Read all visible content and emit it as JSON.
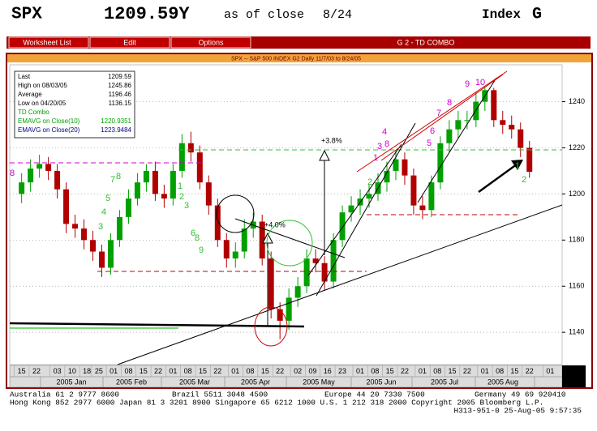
{
  "header": {
    "symbol": "SPX",
    "price": "1209.59Y",
    "as_of": "as of close",
    "date": "8/24",
    "market": "Index",
    "page": "G"
  },
  "menu": [
    "Worksheet List",
    "Edit",
    "Options"
  ],
  "menu_title": "G 2 - TD COMBO",
  "chart_data": {
    "type": "candlestick",
    "title": "SPX -- S&P 500 INDEX G2 Daily 11/7/03 to 8/24/05",
    "legend": [
      {
        "label": "Last",
        "value": 1209.59
      },
      {
        "label": "High on 08/03/05",
        "value": 1245.86
      },
      {
        "label": "Average",
        "value": 1196.46
      },
      {
        "label": "Low on 04/20/05",
        "value": 1136.15
      },
      {
        "label": "TD Combo"
      },
      {
        "label": "EMAVG on Close(10)",
        "value": 1220.9351
      },
      {
        "label": "EMAVG on Close(20)",
        "value": 1223.9484
      }
    ],
    "up_color": "#00a000",
    "down_color": "#b00000",
    "x": [
      2,
      5,
      8,
      11,
      14,
      17,
      20,
      23,
      26,
      29,
      32,
      35,
      38,
      41,
      44,
      47,
      50,
      53,
      56,
      59,
      62,
      65,
      68,
      71,
      74,
      77,
      80,
      83,
      86,
      89,
      92,
      95,
      98,
      101,
      104,
      107,
      110,
      113,
      116,
      119,
      122,
      125,
      128,
      131,
      134,
      137,
      140,
      143,
      146,
      149,
      152,
      155,
      158,
      161,
      164,
      167,
      170,
      173
    ],
    "open": [
      1200,
      1205,
      1211,
      1213,
      1210,
      1202,
      1187,
      1185,
      1180,
      1175,
      1168,
      1180,
      1190,
      1198,
      1205,
      1210,
      1200,
      1198,
      1210,
      1222,
      1218,
      1205,
      1195,
      1180,
      1172,
      1175,
      1185,
      1188,
      1172,
      1150,
      1145,
      1155,
      1160,
      1172,
      1170,
      1162,
      1180,
      1192,
      1195,
      1198,
      1200,
      1205,
      1210,
      1215,
      1208,
      1195,
      1193,
      1205,
      1222,
      1228,
      1232,
      1232,
      1240,
      1245,
      1232,
      1230,
      1228,
      1220
    ],
    "high": [
      1209,
      1215,
      1217,
      1216,
      1213,
      1205,
      1191,
      1189,
      1184,
      1178,
      1183,
      1193,
      1202,
      1209,
      1213,
      1214,
      1204,
      1213,
      1226,
      1227,
      1221,
      1208,
      1198,
      1183,
      1179,
      1189,
      1192,
      1191,
      1175,
      1153,
      1159,
      1164,
      1176,
      1176,
      1173,
      1183,
      1195,
      1199,
      1202,
      1204,
      1209,
      1214,
      1219,
      1218,
      1211,
      1199,
      1208,
      1225,
      1232,
      1236,
      1236,
      1244,
      1246,
      1246,
      1236,
      1234,
      1231,
      1223
    ],
    "low": [
      1196,
      1201,
      1207,
      1206,
      1198,
      1183,
      1181,
      1176,
      1171,
      1164,
      1165,
      1177,
      1187,
      1195,
      1201,
      1197,
      1194,
      1195,
      1207,
      1214,
      1202,
      1191,
      1177,
      1168,
      1168,
      1172,
      1181,
      1169,
      1146,
      1137,
      1141,
      1151,
      1157,
      1166,
      1158,
      1159,
      1177,
      1188,
      1191,
      1194,
      1197,
      1201,
      1206,
      1204,
      1191,
      1189,
      1190,
      1202,
      1218,
      1224,
      1228,
      1229,
      1236,
      1229,
      1226,
      1224,
      1216,
      1207
    ],
    "close": [
      1205,
      1211,
      1213,
      1210,
      1202,
      1187,
      1185,
      1180,
      1175,
      1168,
      1180,
      1190,
      1198,
      1205,
      1210,
      1200,
      1198,
      1210,
      1222,
      1218,
      1205,
      1195,
      1180,
      1172,
      1175,
      1185,
      1188,
      1172,
      1150,
      1145,
      1155,
      1160,
      1172,
      1170,
      1162,
      1180,
      1192,
      1195,
      1198,
      1200,
      1205,
      1210,
      1215,
      1208,
      1195,
      1193,
      1205,
      1222,
      1228,
      1232,
      1232,
      1240,
      1245,
      1232,
      1230,
      1228,
      1220,
      1209.59
    ],
    "xlim": [
      -2,
      184
    ],
    "xticks": [
      {
        "value": 2,
        "label": "15"
      },
      {
        "value": 7,
        "label": "22"
      },
      {
        "value": 14,
        "label": "03"
      },
      {
        "value": 19,
        "label": "10"
      },
      {
        "value": 24,
        "label": "18"
      },
      {
        "value": 28,
        "label": "25"
      },
      {
        "value": 33,
        "label": "01"
      },
      {
        "value": 38,
        "label": "08"
      },
      {
        "value": 43,
        "label": "15"
      },
      {
        "value": 48,
        "label": "22"
      },
      {
        "value": 53,
        "label": "01"
      },
      {
        "value": 58,
        "label": "08"
      },
      {
        "value": 63,
        "label": "15"
      },
      {
        "value": 68,
        "label": "22"
      },
      {
        "value": 74,
        "label": "01"
      },
      {
        "value": 79,
        "label": "08"
      },
      {
        "value": 84,
        "label": "15"
      },
      {
        "value": 89,
        "label": "22"
      },
      {
        "value": 95,
        "label": "02"
      },
      {
        "value": 100,
        "label": "09"
      },
      {
        "value": 105,
        "label": "16"
      },
      {
        "value": 110,
        "label": "23"
      },
      {
        "value": 116,
        "label": "01"
      },
      {
        "value": 121,
        "label": "08"
      },
      {
        "value": 126,
        "label": "15"
      },
      {
        "value": 131,
        "label": "22"
      },
      {
        "value": 137,
        "label": "01"
      },
      {
        "value": 142,
        "label": "08"
      },
      {
        "value": 147,
        "label": "15"
      },
      {
        "value": 152,
        "label": "22"
      },
      {
        "value": 158,
        "label": "01"
      },
      {
        "value": 163,
        "label": "08"
      },
      {
        "value": 168,
        "label": "15"
      },
      {
        "value": 173,
        "label": "22"
      },
      {
        "value": 180,
        "label": "01"
      }
    ],
    "months": [
      "2005 Jan",
      "2005 Feb",
      "2005 Mar",
      "2005 Apr",
      "2005 May",
      "2005 Jun",
      "2005 Jul",
      "2005 Aug"
    ],
    "ylim": [
      1126,
      1256
    ],
    "yticks": [
      1140,
      1160,
      1180,
      1200,
      1220,
      1240
    ],
    "grid": true,
    "annotations": [
      "+3.8%",
      "+4.0%"
    ],
    "td_counts": [
      "8",
      "7",
      "8",
      "5",
      "4",
      "3",
      "1",
      "2",
      "3",
      "6",
      "8",
      "9",
      "4",
      "3",
      "8",
      "1",
      "2",
      "5",
      "6",
      "7",
      "8",
      "9",
      "10",
      "1",
      "2"
    ]
  },
  "footer": [
    "Australia 61 2 9777 8600",
    "Brazil 5511 3048 4500",
    "Europe 44 20 7330 7500",
    "Germany 49 69 920410",
    "Hong Kong 852 2977 6000 Japan 81 3 3201 8900 Singapore 65 6212 1000 U.S. 1 212 318 2000 Copyright 2005 Bloomberg L.P.",
    "H313-951-0 25-Aug-05  9:57:35"
  ]
}
